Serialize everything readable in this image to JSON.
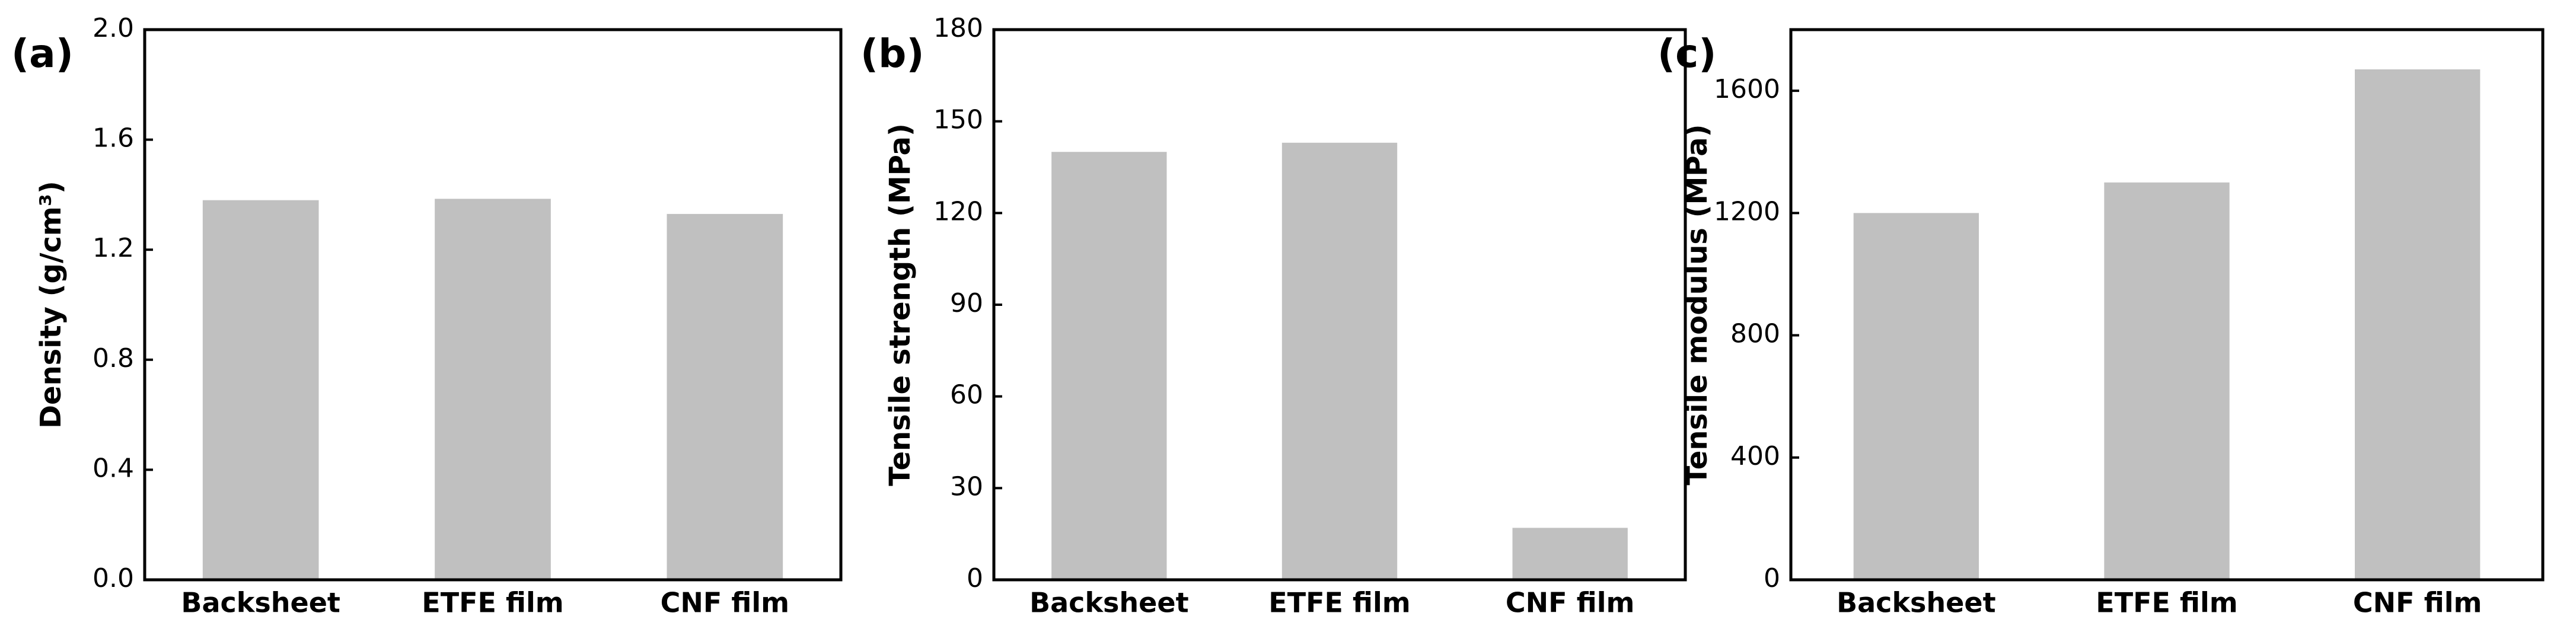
{
  "chart_data": [
    {
      "type": "bar",
      "panel_label": "(a)",
      "y_label": "Density (g/cm³)",
      "categories": [
        "Backsheet",
        "ETFE film",
        "CNF film"
      ],
      "values": [
        1.38,
        1.385,
        1.33
      ],
      "color": "#c0c0c0",
      "ylim": [
        0,
        2
      ],
      "yticks": [
        {
          "value": 0,
          "label": "0.0"
        },
        0.4,
        0.8,
        1.2,
        1.6,
        {
          "value": 2,
          "label": "2.0"
        }
      ],
      "grid": false
    },
    {
      "type": "bar",
      "panel_label": "(b)",
      "y_label": "Tensile strength (MPa)",
      "categories": [
        "Backsheet",
        "ETFE film",
        "CNF film"
      ],
      "values": [
        140,
        143,
        17
      ],
      "color": "#c0c0c0",
      "ylim": [
        0,
        180
      ],
      "yticks": [
        0,
        30,
        60,
        90,
        120,
        150,
        180
      ],
      "grid": false
    },
    {
      "type": "bar",
      "panel_label": "(c)",
      "y_label": "Tensile modulus (MPa)",
      "categories": [
        "Backsheet",
        "ETFE film",
        "CNF film"
      ],
      "values": [
        1200,
        1300,
        1670
      ],
      "color": "#c0c0c0",
      "ylim": [
        0,
        1800
      ],
      "yticks": [
        0,
        400,
        800,
        1200,
        1600
      ],
      "grid": false
    }
  ]
}
